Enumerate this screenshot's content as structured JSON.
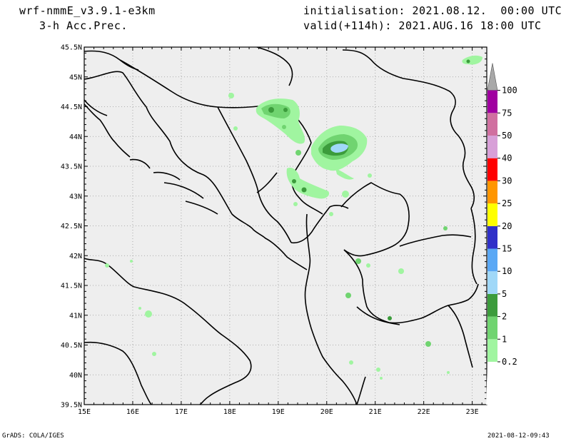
{
  "header": {
    "model": "wrf-nmmE_v3.9.1-e3km",
    "field": "3-h Acc.Prec.",
    "initialisation": "initialisation: 2021.08.12.  00:00 UTC",
    "valid": "valid(+114h): 2021.AUG.16 18:00 UTC"
  },
  "footer": {
    "left": "GrADS: COLA/IGES",
    "right": "2021-08-12-09:43"
  },
  "map": {
    "lon_labels": [
      "15E",
      "16E",
      "17E",
      "18E",
      "19E",
      "20E",
      "21E",
      "22E",
      "23E"
    ],
    "lat_labels": [
      "45.5N",
      "45N",
      "44.5N",
      "44N",
      "43.5N",
      "43N",
      "42.5N",
      "42N",
      "41.5N",
      "41N",
      "40.5N",
      "40N",
      "39.5N"
    ],
    "lon_range": [
      15,
      23.3
    ],
    "lat_range": [
      39.5,
      45.5
    ],
    "background_color": "#eeeeee",
    "grid": true
  },
  "legend": {
    "labels": [
      "0.2",
      "1",
      "2",
      "5",
      "10",
      "15",
      "20",
      "25",
      "30",
      "40",
      "50",
      "75",
      "100"
    ],
    "colors": [
      "#a0f5a0",
      "#70d470",
      "#3c9c3c",
      "#a0d8f8",
      "#5aa8f5",
      "#3030c8",
      "#ffff00",
      "#ff9600",
      "#ff0000",
      "#d8a0d8",
      "#d070a0",
      "#a000a0",
      "#b0b0b0"
    ],
    "top_color": "#a8a8a8"
  },
  "precip_areas": [
    {
      "name": "cell-east-bosnia",
      "lon": 19.0,
      "lat": 44.5,
      "level": "2"
    },
    {
      "name": "cell-west-serbia",
      "lon": 19.8,
      "lat": 43.85,
      "level": "10"
    },
    {
      "name": "cell-montenegro",
      "lon": 19.4,
      "lat": 43.1,
      "level": "2"
    },
    {
      "name": "cell-romania",
      "lon": 22.8,
      "lat": 45.2,
      "level": "1"
    }
  ]
}
